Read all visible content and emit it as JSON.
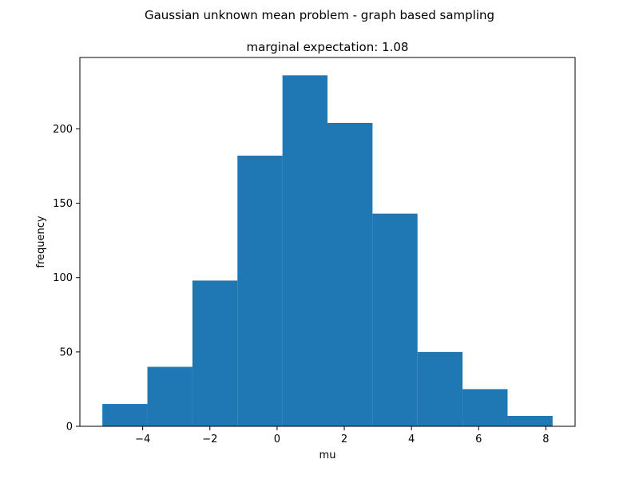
{
  "figure": {
    "suptitle": "Gaussian unknown mean problem - graph based sampling"
  },
  "chart_data": {
    "type": "bar",
    "title": "marginal expectation: 1.08",
    "xlabel": "mu",
    "ylabel": "frequency",
    "bin_edges": [
      -5.2,
      -3.86,
      -2.52,
      -1.18,
      0.16,
      1.5,
      2.84,
      4.18,
      5.52,
      6.86,
      8.2
    ],
    "values": [
      15,
      40,
      98,
      182,
      236,
      204,
      143,
      50,
      25,
      7
    ],
    "xlim": [
      -5.87,
      8.87
    ],
    "ylim": [
      0,
      248
    ],
    "xticks": [
      -4,
      -2,
      0,
      2,
      4,
      6,
      8
    ],
    "xtick_labels": [
      "−4",
      "−2",
      "0",
      "2",
      "4",
      "6",
      "8"
    ],
    "yticks": [
      0,
      50,
      100,
      150,
      200
    ],
    "ytick_labels": [
      "0",
      "50",
      "100",
      "150",
      "200"
    ],
    "bar_color": "#1f77b4",
    "grid": false,
    "legend": "none"
  }
}
